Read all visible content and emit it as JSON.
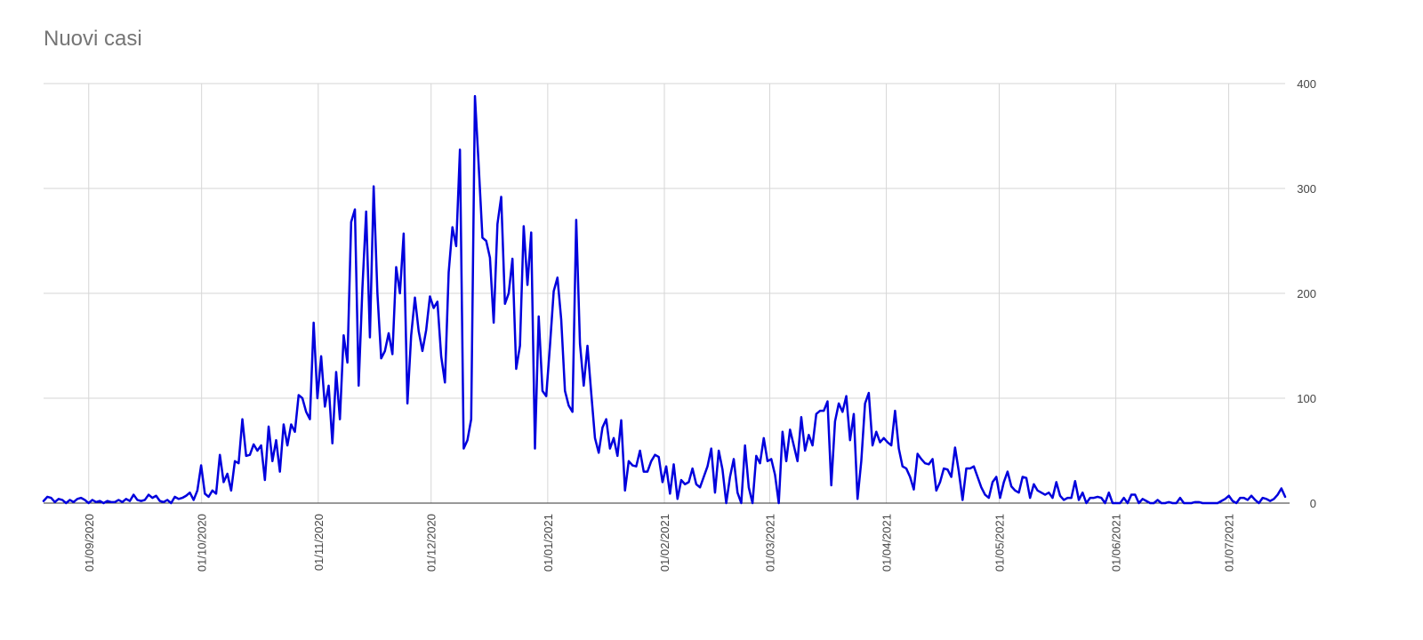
{
  "chart_data": {
    "type": "line",
    "title": "Nuovi casi",
    "xlabel": "",
    "ylabel": "",
    "x_start": "2020-08-20",
    "x_end": "2021-07-16",
    "xlim": [
      "2020-08-20",
      "2021-07-16"
    ],
    "ylim": [
      0,
      400
    ],
    "y_ticks": [
      0,
      100,
      200,
      300,
      400
    ],
    "y_axis_side": "right",
    "x_ticks": [
      {
        "date": "2020-09-01",
        "label": "01/09/2020"
      },
      {
        "date": "2020-10-01",
        "label": "01/10/2020"
      },
      {
        "date": "2020-11-01",
        "label": "01/11/2020"
      },
      {
        "date": "2020-12-01",
        "label": "01/12/2020"
      },
      {
        "date": "2021-01-01",
        "label": "01/01/2021"
      },
      {
        "date": "2021-02-01",
        "label": "01/02/2021"
      },
      {
        "date": "2021-03-01",
        "label": "01/03/2021"
      },
      {
        "date": "2021-04-01",
        "label": "01/04/2021"
      },
      {
        "date": "2021-05-01",
        "label": "01/05/2021"
      },
      {
        "date": "2021-06-01",
        "label": "01/06/2021"
      },
      {
        "date": "2021-07-01",
        "label": "01/07/2021"
      }
    ],
    "x_tick_rotation": "vertical",
    "grid": true,
    "legend": "none",
    "color": "#0000dd",
    "series": [
      {
        "values": [
          2,
          6,
          5,
          1,
          4,
          3,
          0,
          3,
          1,
          4,
          5,
          3,
          0,
          3,
          1,
          2,
          0,
          2,
          1,
          1,
          3,
          1,
          4,
          2,
          8,
          3,
          2,
          3,
          8,
          5,
          7,
          2,
          1,
          3,
          0,
          6,
          4,
          5,
          7,
          10,
          3,
          12,
          36,
          9,
          6,
          12,
          9,
          46,
          20,
          28,
          12,
          40,
          38,
          80,
          45,
          46,
          56,
          50,
          55,
          22,
          73,
          40,
          60,
          30,
          75,
          55,
          75,
          68,
          103,
          100,
          87,
          80,
          172,
          100,
          140,
          92,
          112,
          57,
          125,
          80,
          160,
          134,
          268,
          280,
          112,
          205,
          278,
          158,
          302,
          200,
          138,
          145,
          162,
          142,
          225,
          200,
          257,
          95,
          160,
          196,
          164,
          145,
          165,
          197,
          186,
          192,
          140,
          115,
          220,
          263,
          245,
          337,
          52,
          60,
          80,
          388,
          322,
          253,
          250,
          234,
          172,
          266,
          292,
          190,
          200,
          233,
          128,
          150,
          264,
          208,
          258,
          52,
          178,
          107,
          102,
          150,
          202,
          215,
          175,
          107,
          93,
          87,
          270,
          152,
          112,
          150,
          105,
          62,
          48,
          72,
          80,
          52,
          62,
          45,
          79,
          12,
          40,
          36,
          35,
          50,
          30,
          30,
          40,
          46,
          44,
          20,
          35,
          9,
          37,
          4,
          22,
          18,
          20,
          33,
          18,
          15,
          25,
          35,
          52,
          10,
          50,
          32,
          0,
          25,
          42,
          10,
          0,
          55,
          15,
          0,
          45,
          38,
          62,
          40,
          42,
          27,
          0,
          68,
          40,
          70,
          55,
          40,
          82,
          50,
          65,
          55,
          85,
          88,
          88,
          97,
          17,
          78,
          95,
          87,
          102,
          60,
          85,
          4,
          40,
          95,
          105,
          55,
          68,
          58,
          62,
          58,
          55,
          88,
          52,
          35,
          33,
          25,
          13,
          47,
          42,
          38,
          37,
          42,
          12,
          20,
          33,
          32,
          25,
          53,
          30,
          3,
          33,
          33,
          35,
          25,
          15,
          8,
          5,
          20,
          25,
          5,
          20,
          30,
          16,
          12,
          10,
          25,
          24,
          5,
          18,
          12,
          10,
          8,
          10,
          5,
          20,
          7,
          3,
          5,
          5,
          21,
          3,
          10,
          0,
          5,
          5,
          6,
          5,
          0,
          10,
          0,
          0,
          0,
          5,
          0,
          8,
          8,
          0,
          4,
          2,
          0,
          0,
          3,
          0,
          0,
          1,
          0,
          0,
          5,
          0,
          0,
          0,
          1,
          1,
          0,
          0,
          0,
          0,
          0,
          2,
          4,
          7,
          2,
          0,
          5,
          5,
          3,
          7,
          3,
          0,
          5,
          4,
          2,
          4,
          8,
          14,
          6
        ]
      }
    ]
  }
}
